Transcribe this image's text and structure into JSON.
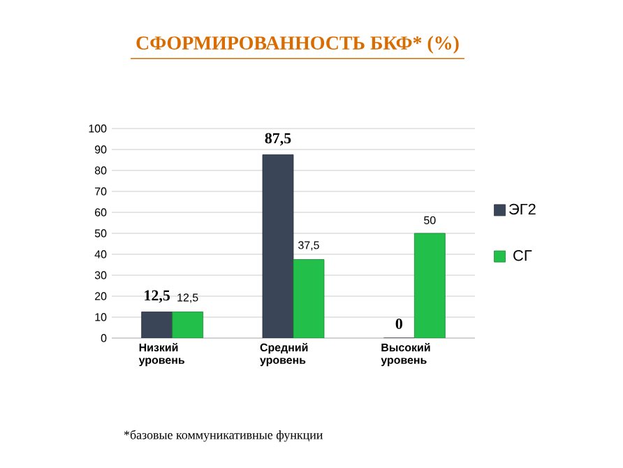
{
  "chart_data": {
    "type": "bar",
    "title": "СФОРМИРОВАННОСТЬ БКФ* (%)",
    "categories": [
      "Низкий уровень",
      "Средний уровень",
      "Высокий уровень"
    ],
    "series": [
      {
        "name": "ЭГ2",
        "color": "#3b4558",
        "values": [
          12.5,
          87.5,
          0
        ],
        "value_labels": [
          "12,5",
          "87,5",
          "0"
        ]
      },
      {
        "name": "СГ",
        "color": "#22c04a",
        "values": [
          12.5,
          37.5,
          50
        ],
        "value_labels": [
          "12,5",
          "37,5",
          "50"
        ]
      }
    ],
    "ylim": [
      0,
      100
    ],
    "yticks": [
      0,
      10,
      20,
      30,
      40,
      50,
      60,
      70,
      80,
      90,
      100
    ],
    "grid": "y",
    "legend": "right",
    "annotations": [
      "*базовые коммуникативные функции"
    ]
  }
}
